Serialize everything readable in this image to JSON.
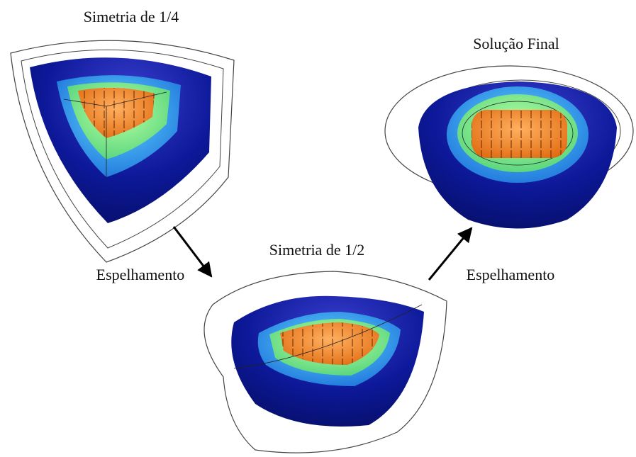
{
  "nodes": [
    {
      "label": "Simetria de 1/4"
    },
    {
      "label": "Simetria de 1/2"
    },
    {
      "label": "Solução Final"
    }
  ],
  "edges": [
    {
      "label": "Espelhamento"
    },
    {
      "label": "Espelhamento"
    }
  ]
}
